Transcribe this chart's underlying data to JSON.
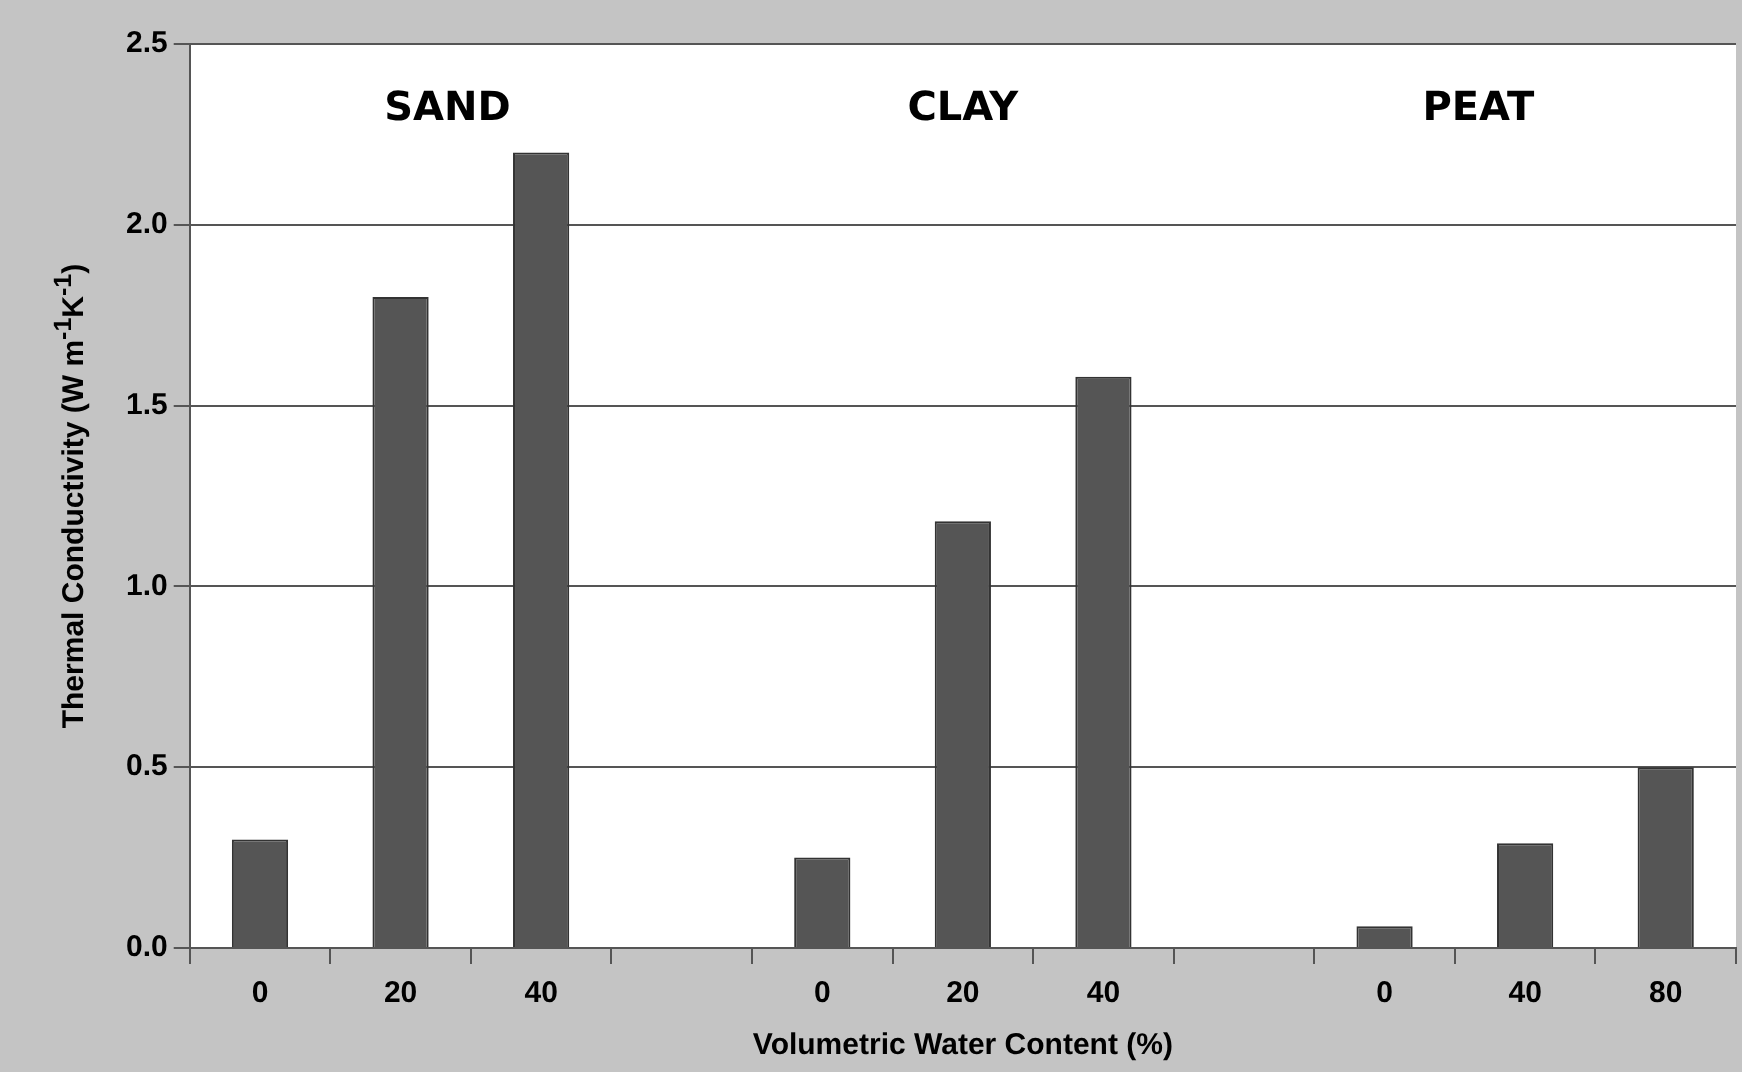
{
  "chart_data": {
    "type": "bar",
    "xlabel": "Volumetric Water Content (%)",
    "ylabel": "Thermal Conductivity (W m$^{-1}$K$^{-1}$)",
    "annotations": [
      "SAND",
      "CLAY",
      "PEAT"
    ],
    "categories": [
      "0",
      "20",
      "40",
      null,
      "0",
      "20",
      "40",
      null,
      "0",
      "40",
      "80"
    ],
    "values": [
      0.3,
      1.8,
      2.2,
      null,
      0.25,
      1.18,
      1.58,
      null,
      0.06,
      0.29,
      0.5
    ],
    "color": "#555555",
    "ylim": [
      0,
      2.5
    ],
    "yticks": [
      {
        "value": 0,
        "label": "0.0"
      },
      0.5,
      {
        "value": 1,
        "label": "1.0"
      },
      1.5,
      {
        "value": 2,
        "label": "2.0"
      },
      2.5
    ],
    "grid": "y",
    "legend": false
  }
}
